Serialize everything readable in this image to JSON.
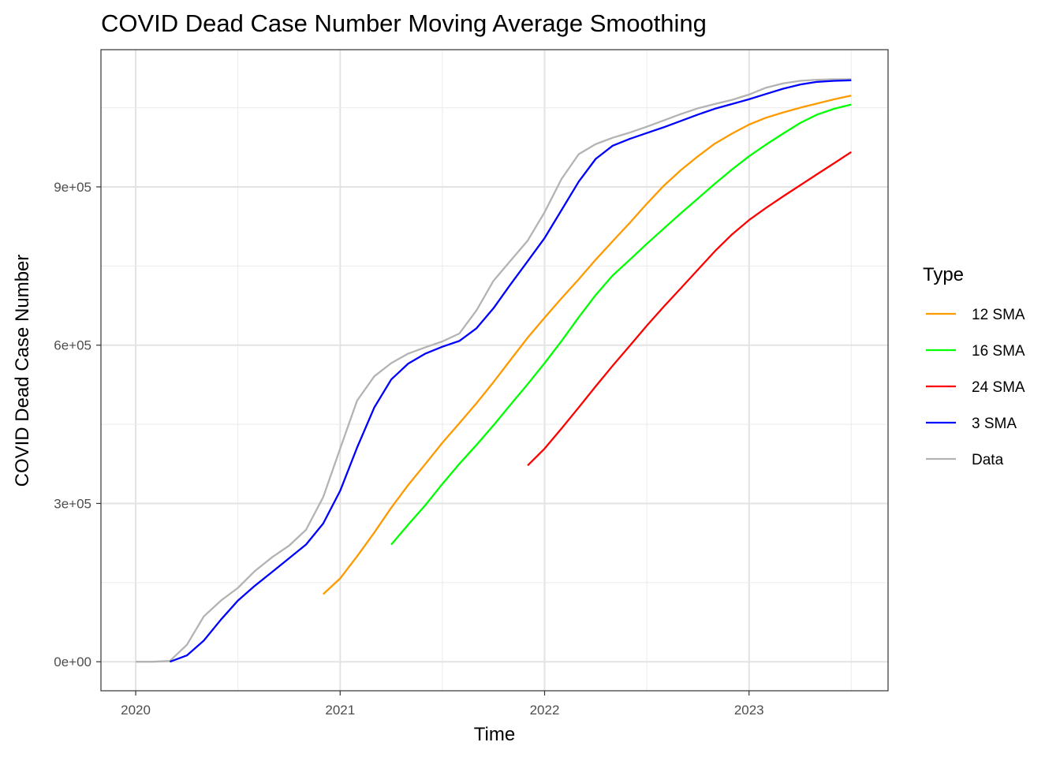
{
  "chart_data": {
    "type": "line",
    "title": "COVID Dead Case Number Moving Average Smoothing",
    "xlabel": "Time",
    "ylabel": "COVID Dead Case Number",
    "x_ticks": [
      "2020",
      "2021",
      "2022",
      "2023"
    ],
    "y_ticks": [
      "0e+00",
      "3e+05",
      "6e+05",
      "9e+05"
    ],
    "xlim": [
      2019.83,
      2023.68
    ],
    "ylim": [
      -55000,
      1160000
    ],
    "grid": true,
    "legend_title": "Type",
    "legend_position": "right",
    "series": [
      {
        "name": "12 SMA",
        "color": "#FF9900",
        "points": [
          [
            2020.917,
            128000
          ],
          [
            2021.0,
            158000
          ],
          [
            2021.083,
            200000
          ],
          [
            2021.167,
            245000
          ],
          [
            2021.25,
            292000
          ],
          [
            2021.333,
            335000
          ],
          [
            2021.417,
            375000
          ],
          [
            2021.5,
            415000
          ],
          [
            2021.583,
            452000
          ],
          [
            2021.667,
            490000
          ],
          [
            2021.75,
            530000
          ],
          [
            2021.833,
            572000
          ],
          [
            2021.917,
            614000
          ],
          [
            2022.0,
            652000
          ],
          [
            2022.083,
            689000
          ],
          [
            2022.167,
            725000
          ],
          [
            2022.25,
            762000
          ],
          [
            2022.333,
            797000
          ],
          [
            2022.417,
            832000
          ],
          [
            2022.5,
            868000
          ],
          [
            2022.583,
            902000
          ],
          [
            2022.667,
            932000
          ],
          [
            2022.75,
            958000
          ],
          [
            2022.833,
            982000
          ],
          [
            2022.917,
            1001000
          ],
          [
            2023.0,
            1018000
          ],
          [
            2023.083,
            1031000
          ],
          [
            2023.167,
            1041000
          ],
          [
            2023.25,
            1050000
          ],
          [
            2023.333,
            1058000
          ],
          [
            2023.417,
            1066000
          ],
          [
            2023.5,
            1073000
          ]
        ]
      },
      {
        "name": "16 SMA",
        "color": "#00FF00",
        "points": [
          [
            2021.25,
            222000
          ],
          [
            2021.333,
            260000
          ],
          [
            2021.417,
            297000
          ],
          [
            2021.5,
            337000
          ],
          [
            2021.583,
            375000
          ],
          [
            2021.667,
            411000
          ],
          [
            2021.75,
            448000
          ],
          [
            2021.833,
            487000
          ],
          [
            2021.917,
            526000
          ],
          [
            2022.0,
            566000
          ],
          [
            2022.083,
            608000
          ],
          [
            2022.167,
            653000
          ],
          [
            2022.25,
            695000
          ],
          [
            2022.333,
            732000
          ],
          [
            2022.417,
            762000
          ],
          [
            2022.5,
            792000
          ],
          [
            2022.583,
            821000
          ],
          [
            2022.667,
            850000
          ],
          [
            2022.75,
            878000
          ],
          [
            2022.833,
            906000
          ],
          [
            2022.917,
            933000
          ],
          [
            2022.917,
            933000
          ],
          [
            2023.0,
            958000
          ],
          [
            2023.083,
            980000
          ],
          [
            2023.167,
            1001000
          ],
          [
            2023.25,
            1021000
          ],
          [
            2023.333,
            1037000
          ],
          [
            2023.417,
            1048000
          ],
          [
            2023.5,
            1056000
          ]
        ]
      },
      {
        "name": "24 SMA",
        "color": "#FF0000",
        "points": [
          [
            2021.917,
            372000
          ],
          [
            2022.0,
            404000
          ],
          [
            2022.083,
            442000
          ],
          [
            2022.167,
            482000
          ],
          [
            2022.25,
            522000
          ],
          [
            2022.333,
            561000
          ],
          [
            2022.417,
            599000
          ],
          [
            2022.5,
            637000
          ],
          [
            2022.583,
            673000
          ],
          [
            2022.667,
            708000
          ],
          [
            2022.75,
            743000
          ],
          [
            2022.833,
            778000
          ],
          [
            2022.917,
            810000
          ],
          [
            2023.0,
            837000
          ],
          [
            2023.083,
            860000
          ],
          [
            2023.167,
            882000
          ],
          [
            2023.25,
            903000
          ],
          [
            2023.333,
            924000
          ],
          [
            2023.417,
            945000
          ],
          [
            2023.5,
            966000
          ]
        ]
      },
      {
        "name": "3 SMA",
        "color": "#0000FF",
        "points": [
          [
            2020.167,
            0
          ],
          [
            2020.25,
            12000
          ],
          [
            2020.333,
            40000
          ],
          [
            2020.417,
            80000
          ],
          [
            2020.5,
            116000
          ],
          [
            2020.583,
            144000
          ],
          [
            2020.667,
            170000
          ],
          [
            2020.75,
            196000
          ],
          [
            2020.833,
            222000
          ],
          [
            2020.917,
            262000
          ],
          [
            2021.0,
            324000
          ],
          [
            2021.083,
            406000
          ],
          [
            2021.167,
            482000
          ],
          [
            2021.25,
            535000
          ],
          [
            2021.333,
            565000
          ],
          [
            2021.417,
            584000
          ],
          [
            2021.5,
            597000
          ],
          [
            2021.583,
            608000
          ],
          [
            2021.667,
            632000
          ],
          [
            2021.75,
            670000
          ],
          [
            2021.833,
            715000
          ],
          [
            2021.917,
            759000
          ],
          [
            2022.0,
            803000
          ],
          [
            2022.083,
            856000
          ],
          [
            2022.167,
            910000
          ],
          [
            2022.25,
            953000
          ],
          [
            2022.333,
            978000
          ],
          [
            2022.417,
            991000
          ],
          [
            2022.5,
            1002000
          ],
          [
            2022.583,
            1013000
          ],
          [
            2022.667,
            1025000
          ],
          [
            2022.75,
            1037000
          ],
          [
            2022.833,
            1048000
          ],
          [
            2022.917,
            1057000
          ],
          [
            2023.0,
            1066000
          ],
          [
            2023.083,
            1076000
          ],
          [
            2023.167,
            1086000
          ],
          [
            2023.25,
            1094000
          ],
          [
            2023.333,
            1099000
          ],
          [
            2023.417,
            1101000
          ],
          [
            2023.5,
            1102000
          ]
        ]
      },
      {
        "name": "Data",
        "color": "#B3B3B3",
        "points": [
          [
            2020.0,
            0
          ],
          [
            2020.083,
            0
          ],
          [
            2020.167,
            1500
          ],
          [
            2020.25,
            32000
          ],
          [
            2020.333,
            86000
          ],
          [
            2020.417,
            116000
          ],
          [
            2020.5,
            140000
          ],
          [
            2020.583,
            172000
          ],
          [
            2020.667,
            198000
          ],
          [
            2020.75,
            220000
          ],
          [
            2020.833,
            250000
          ],
          [
            2020.917,
            312000
          ],
          [
            2021.0,
            404000
          ],
          [
            2021.083,
            495000
          ],
          [
            2021.167,
            541000
          ],
          [
            2021.25,
            566000
          ],
          [
            2021.333,
            584000
          ],
          [
            2021.417,
            596000
          ],
          [
            2021.5,
            607000
          ],
          [
            2021.583,
            622000
          ],
          [
            2021.667,
            666000
          ],
          [
            2021.75,
            722000
          ],
          [
            2021.833,
            760000
          ],
          [
            2021.917,
            798000
          ],
          [
            2022.0,
            852000
          ],
          [
            2022.083,
            915000
          ],
          [
            2022.167,
            962000
          ],
          [
            2022.25,
            981000
          ],
          [
            2022.333,
            993000
          ],
          [
            2022.417,
            1003000
          ],
          [
            2022.5,
            1014000
          ],
          [
            2022.583,
            1026000
          ],
          [
            2022.667,
            1038000
          ],
          [
            2022.75,
            1049000
          ],
          [
            2022.833,
            1057000
          ],
          [
            2022.917,
            1065000
          ],
          [
            2023.0,
            1075000
          ],
          [
            2023.083,
            1088000
          ],
          [
            2023.167,
            1096000
          ],
          [
            2023.25,
            1101000
          ],
          [
            2023.333,
            1103000
          ],
          [
            2023.417,
            1104000
          ],
          [
            2023.5,
            1104000
          ]
        ]
      }
    ]
  }
}
